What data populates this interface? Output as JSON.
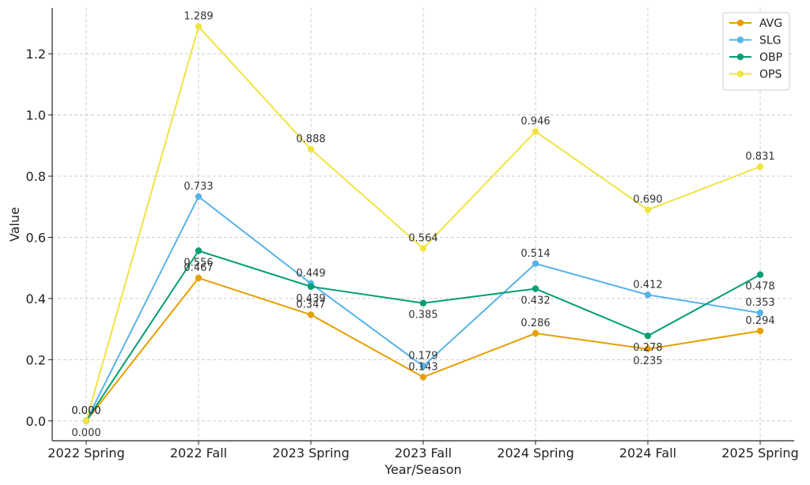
{
  "chart_data": {
    "type": "line",
    "title": "",
    "xlabel": "Year/Season",
    "ylabel": "Value",
    "ylim": [
      -0.065,
      1.35
    ],
    "yticks": [
      0.0,
      0.2,
      0.4,
      0.6,
      0.8,
      1.0,
      1.2
    ],
    "ytick_labels": [
      "0.0",
      "0.2",
      "0.4",
      "0.6",
      "0.8",
      "1.0",
      "1.2"
    ],
    "grid": true,
    "legend_position": "top-right",
    "categories": [
      "2022 Spring",
      "2022 Fall",
      "2023 Spring",
      "2023 Fall",
      "2024 Spring",
      "2024 Fall",
      "2025 Spring"
    ],
    "series": [
      {
        "name": "AVG",
        "color": "#E69F00",
        "values": [
          0.0,
          0.467,
          0.347,
          0.143,
          0.286,
          0.235,
          0.294
        ],
        "labels": [
          "0.000",
          "0.467",
          "0.347",
          "0.143",
          "0.286",
          "0.235",
          "0.294"
        ],
        "label_pos": [
          "above",
          "above",
          "above",
          "above",
          "above",
          "below",
          "above"
        ]
      },
      {
        "name": "SLG",
        "color": "#56B4E9",
        "values": [
          0.0,
          0.733,
          0.449,
          0.179,
          0.514,
          0.412,
          0.353
        ],
        "labels": [
          "0.000",
          "0.733",
          "0.449",
          "0.179",
          "0.514",
          "0.412",
          "0.353"
        ],
        "label_pos": [
          "above",
          "above",
          "above",
          "above",
          "above",
          "above",
          "above"
        ]
      },
      {
        "name": "OBP",
        "color": "#009E73",
        "values": [
          0.0,
          0.556,
          0.439,
          0.385,
          0.432,
          0.278,
          0.478
        ],
        "labels": [
          "0.000",
          "0.556",
          "0.439",
          "0.385",
          "0.432",
          "0.278",
          "0.478"
        ],
        "label_pos": [
          "below",
          "below",
          "below",
          "below",
          "below",
          "below",
          "below"
        ]
      },
      {
        "name": "OPS",
        "color": "#F0E442",
        "values": [
          0.0,
          1.289,
          0.888,
          0.564,
          0.946,
          0.69,
          0.831
        ],
        "labels": [
          "0.000",
          "1.289",
          "0.888",
          "0.564",
          "0.946",
          "0.690",
          "0.831"
        ],
        "label_pos": [
          "none",
          "above",
          "above",
          "above",
          "above",
          "above",
          "above"
        ]
      }
    ]
  }
}
